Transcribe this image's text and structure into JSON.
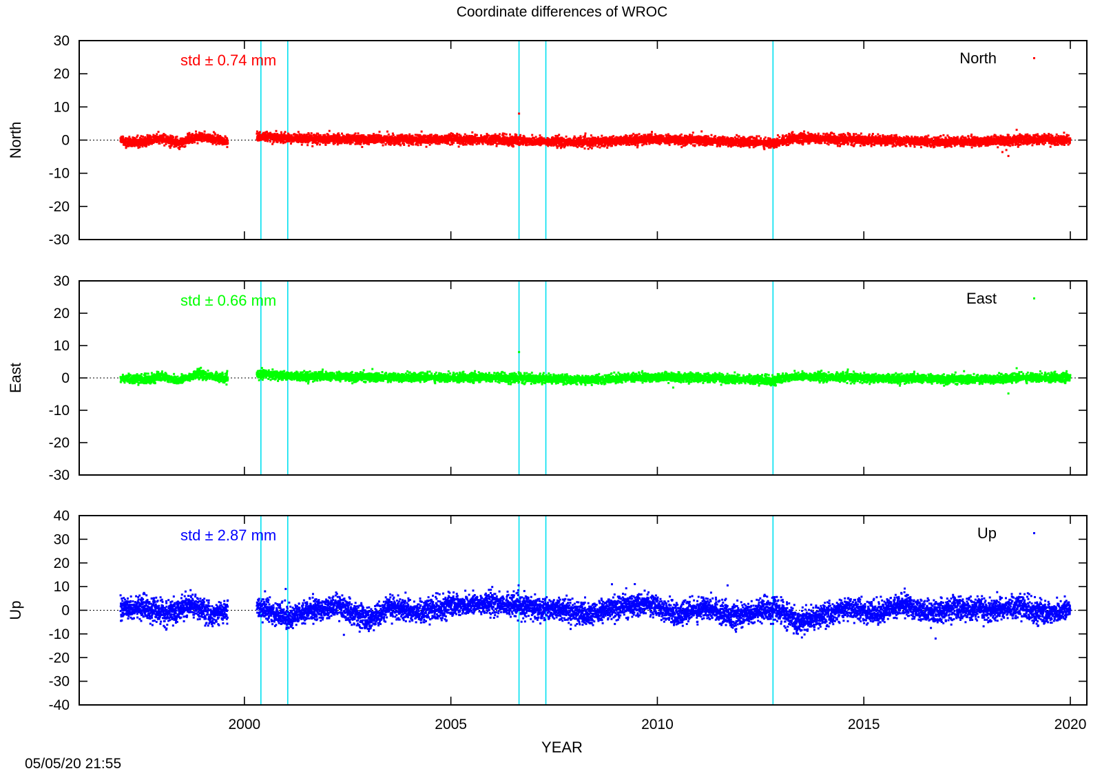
{
  "chart_data": {
    "type": "scatter",
    "title": "Coordinate differences of WROC",
    "xlabel": "YEAR",
    "timestamp": "05/05/20 21:55",
    "xlim": [
      1996,
      2020.4
    ],
    "xticks": [
      2000,
      2005,
      2010,
      2015,
      2020
    ],
    "break_lines_x": [
      2000.4,
      2001.05,
      2006.65,
      2007.3,
      2012.8
    ],
    "data_gap": [
      1999.6,
      2000.3
    ],
    "panels": [
      {
        "name": "North",
        "ylabel": "North",
        "legend": "North",
        "std_label": "std ± 0.74 mm",
        "color": "#ff0000",
        "ylim": [
          -30,
          30
        ],
        "yticks": [
          30,
          20,
          10,
          0,
          -10,
          -20,
          -30
        ],
        "x_range": [
          1997.0,
          2020.0
        ],
        "noise_sd": 0.7,
        "signal": [
          [
            1997.0,
            -0.3
          ],
          [
            1997.5,
            -0.6
          ],
          [
            1998.0,
            0.5
          ],
          [
            1998.4,
            -0.9
          ],
          [
            1998.9,
            1.2
          ],
          [
            1999.6,
            -0.4
          ],
          [
            2000.4,
            1.1
          ],
          [
            2001.2,
            0.5
          ],
          [
            2002.0,
            0.3
          ],
          [
            2004.0,
            0.2
          ],
          [
            2006.0,
            0.1
          ],
          [
            2007.3,
            -0.4
          ],
          [
            2008.3,
            -0.7
          ],
          [
            2009.5,
            0.2
          ],
          [
            2011.0,
            0.0
          ],
          [
            2012.8,
            -0.9
          ],
          [
            2013.3,
            0.6
          ],
          [
            2015.0,
            0.0
          ],
          [
            2017.0,
            -0.5
          ],
          [
            2018.3,
            -0.3
          ],
          [
            2019.0,
            0.2
          ],
          [
            2020.0,
            0.0
          ]
        ],
        "outliers": [
          [
            2006.65,
            8.0
          ],
          [
            2018.5,
            -4.8
          ],
          [
            2018.7,
            3.1
          ],
          [
            2018.45,
            -3.0
          ]
        ]
      },
      {
        "name": "East",
        "ylabel": "East",
        "legend": "East",
        "std_label": "std ± 0.66 mm",
        "color": "#00ff00",
        "ylim": [
          -30,
          30
        ],
        "yticks": [
          30,
          20,
          10,
          0,
          -10,
          -20,
          -30
        ],
        "x_range": [
          1997.0,
          2020.0
        ],
        "noise_sd": 0.65,
        "signal": [
          [
            1997.0,
            -0.2
          ],
          [
            1997.6,
            -0.5
          ],
          [
            1998.0,
            0.5
          ],
          [
            1998.4,
            -0.8
          ],
          [
            1998.9,
            1.3
          ],
          [
            1999.6,
            -0.4
          ],
          [
            2000.4,
            1.2
          ],
          [
            2001.2,
            0.6
          ],
          [
            2002.0,
            0.4
          ],
          [
            2004.0,
            0.2
          ],
          [
            2006.0,
            0.1
          ],
          [
            2007.3,
            -0.3
          ],
          [
            2008.3,
            -0.6
          ],
          [
            2009.5,
            0.2
          ],
          [
            2011.0,
            0.1
          ],
          [
            2012.8,
            -0.8
          ],
          [
            2013.3,
            0.5
          ],
          [
            2015.0,
            0.0
          ],
          [
            2017.0,
            -0.4
          ],
          [
            2018.3,
            -0.3
          ],
          [
            2019.0,
            0.2
          ],
          [
            2020.0,
            0.1
          ]
        ],
        "outliers": [
          [
            2006.65,
            8.0
          ],
          [
            2018.5,
            -4.8
          ],
          [
            2018.7,
            3.0
          ]
        ]
      },
      {
        "name": "Up",
        "ylabel": "Up",
        "legend": "Up",
        "std_label": "std ± 2.87 mm",
        "color": "#0000ff",
        "ylim": [
          -40,
          40
        ],
        "yticks": [
          40,
          30,
          20,
          10,
          0,
          -10,
          -20,
          -30,
          -40
        ],
        "x_range": [
          1997.0,
          2020.0
        ],
        "noise_sd": 2.3,
        "signal": [
          [
            1997.0,
            0.5
          ],
          [
            1997.7,
            1.0
          ],
          [
            1998.1,
            -2.0
          ],
          [
            1998.7,
            2.5
          ],
          [
            1999.2,
            -2.0
          ],
          [
            1999.6,
            0.0
          ],
          [
            2000.4,
            1.0
          ],
          [
            2001.1,
            -3.0
          ],
          [
            2001.6,
            0.0
          ],
          [
            2002.3,
            1.5
          ],
          [
            2003.0,
            -4.0
          ],
          [
            2003.6,
            1.5
          ],
          [
            2004.2,
            -1.0
          ],
          [
            2005.0,
            2.0
          ],
          [
            2006.0,
            3.0
          ],
          [
            2007.0,
            1.0
          ],
          [
            2007.8,
            0.5
          ],
          [
            2008.3,
            -2.5
          ],
          [
            2009.0,
            1.5
          ],
          [
            2009.8,
            3.0
          ],
          [
            2010.5,
            -2.0
          ],
          [
            2011.2,
            1.5
          ],
          [
            2011.9,
            -3.0
          ],
          [
            2012.8,
            1.0
          ],
          [
            2013.4,
            -5.0
          ],
          [
            2014.0,
            -2.5
          ],
          [
            2014.6,
            1.0
          ],
          [
            2015.3,
            -1.0
          ],
          [
            2016.0,
            2.5
          ],
          [
            2016.6,
            -1.5
          ],
          [
            2017.2,
            1.0
          ],
          [
            2018.0,
            0.0
          ],
          [
            2018.8,
            1.5
          ],
          [
            2019.4,
            -1.5
          ],
          [
            2020.0,
            0.5
          ]
        ],
        "outliers": [
          [
            2013.5,
            -11.5
          ],
          [
            2008.9,
            11.0
          ],
          [
            2001.0,
            9.0
          ],
          [
            2011.7,
            10.5
          ],
          [
            2000.5,
            8.0
          ]
        ]
      }
    ]
  }
}
